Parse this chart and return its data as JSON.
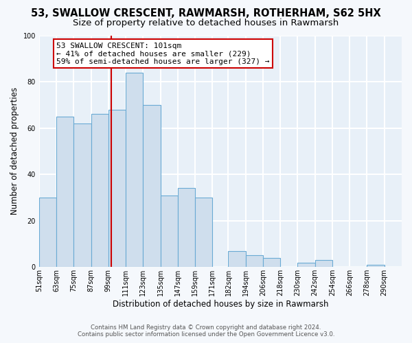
{
  "title": "53, SWALLOW CRESCENT, RAWMARSH, ROTHERHAM, S62 5HX",
  "subtitle": "Size of property relative to detached houses in Rawmarsh",
  "xlabel": "Distribution of detached houses by size in Rawmarsh",
  "ylabel": "Number of detached properties",
  "bin_labels": [
    "51sqm",
    "63sqm",
    "75sqm",
    "87sqm",
    "99sqm",
    "111sqm",
    "123sqm",
    "135sqm",
    "147sqm",
    "159sqm",
    "171sqm",
    "182sqm",
    "194sqm",
    "206sqm",
    "218sqm",
    "230sqm",
    "242sqm",
    "254sqm",
    "266sqm",
    "278sqm",
    "290sqm"
  ],
  "bin_edges": [
    51,
    63,
    75,
    87,
    99,
    111,
    123,
    135,
    147,
    159,
    171,
    182,
    194,
    206,
    218,
    230,
    242,
    254,
    266,
    278,
    290
  ],
  "counts": [
    30,
    65,
    62,
    66,
    68,
    84,
    70,
    31,
    34,
    30,
    0,
    7,
    5,
    4,
    0,
    2,
    3,
    0,
    0,
    1,
    0
  ],
  "bar_color": "#cfdeed",
  "bar_edge_color": "#6aaad4",
  "property_line_x": 101,
  "annotation_text1": "53 SWALLOW CRESCENT: 101sqm",
  "annotation_text2": "← 41% of detached houses are smaller (229)",
  "annotation_text3": "59% of semi-detached houses are larger (327) →",
  "annotation_box_color": "#ffffff",
  "annotation_box_edge_color": "#cc0000",
  "vline_color": "#cc0000",
  "ylim": [
    0,
    100
  ],
  "yticks": [
    0,
    20,
    40,
    60,
    80,
    100
  ],
  "footer1": "Contains HM Land Registry data © Crown copyright and database right 2024.",
  "footer2": "Contains public sector information licensed under the Open Government Licence v3.0.",
  "bg_color": "#f5f8fc",
  "plot_bg_color": "#e8f0f8",
  "grid_color": "#ffffff",
  "title_fontsize": 10.5,
  "subtitle_fontsize": 9.5,
  "axis_label_fontsize": 8.5,
  "tick_fontsize": 7,
  "annotation_fontsize": 8
}
